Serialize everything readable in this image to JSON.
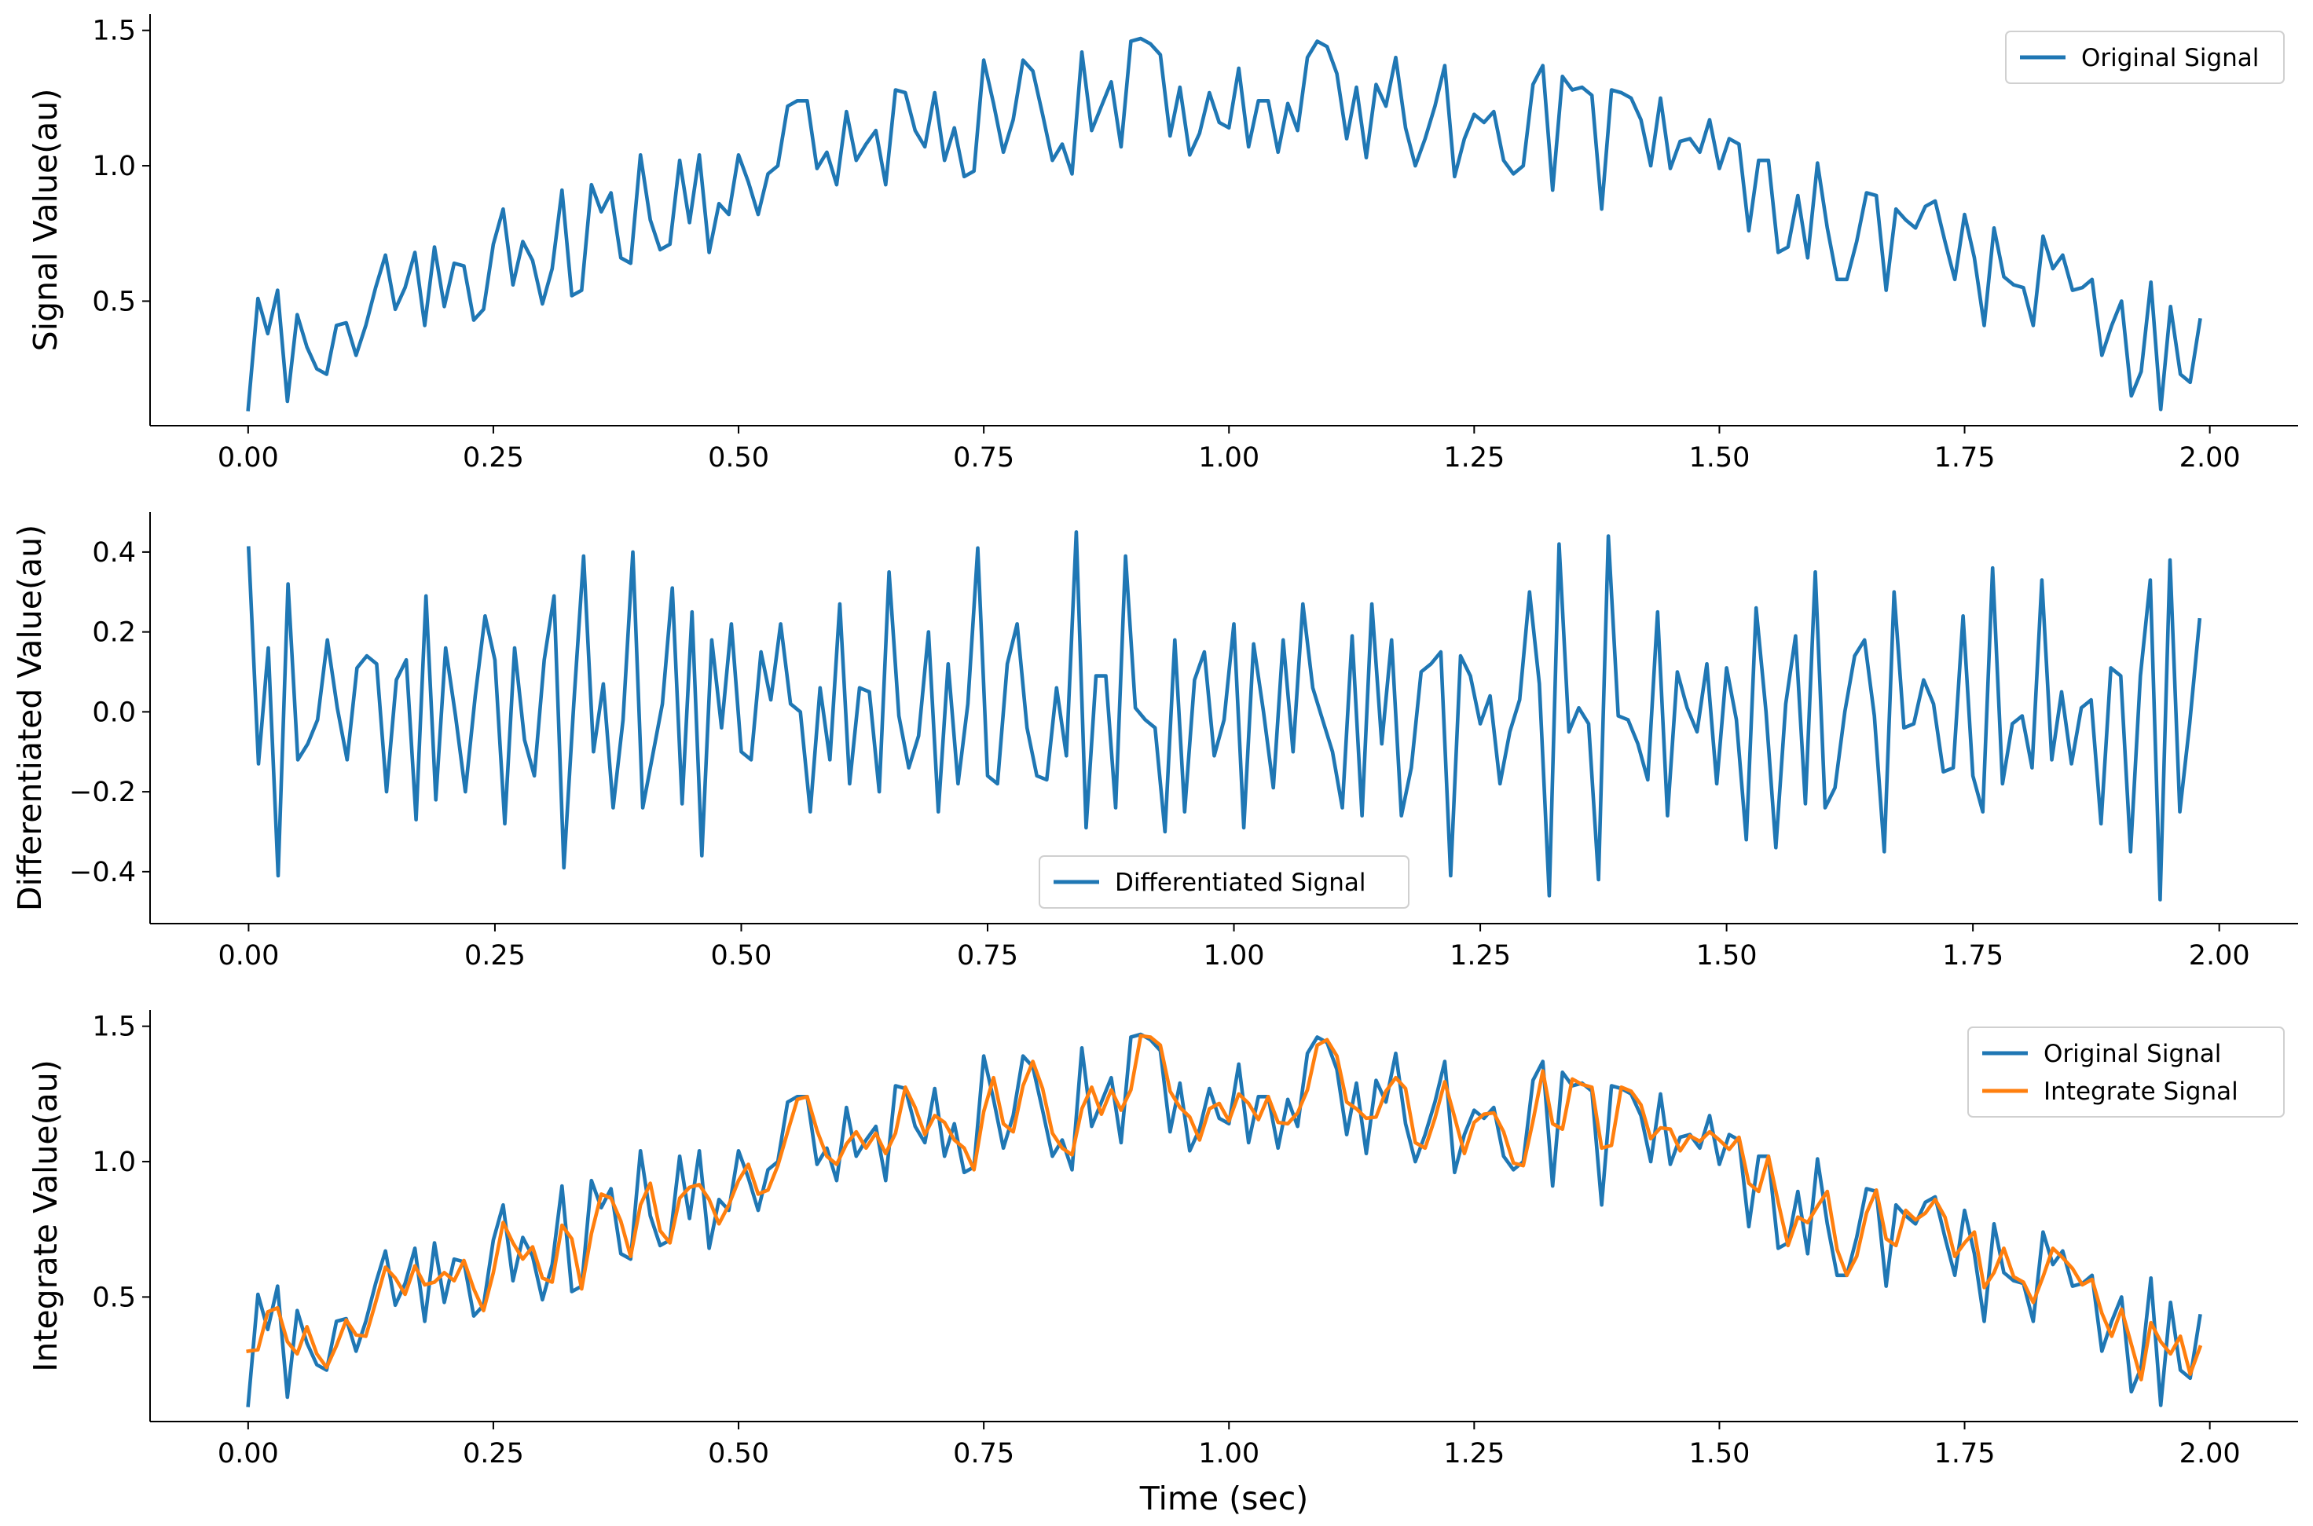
{
  "chart_data": [
    {
      "type": "line",
      "ylabel": "Signal Value(au)",
      "xlabel": "",
      "xlim": [
        -0.1,
        2.09
      ],
      "ylim": [
        0.04,
        1.56
      ],
      "xticks": [
        0.0,
        0.25,
        0.5,
        0.75,
        1.0,
        1.25,
        1.5,
        1.75,
        2.0
      ],
      "xtick_labels": [
        "0.00",
        "0.25",
        "0.50",
        "0.75",
        "1.00",
        "1.25",
        "1.50",
        "1.75",
        "2.00"
      ],
      "yticks": [
        0.5,
        1.0,
        1.5
      ],
      "ytick_labels": [
        "0.5",
        "1.0",
        "1.5"
      ],
      "legend_position": "upper right",
      "series": [
        {
          "name": "Original Signal",
          "color": "#1f77b4",
          "x": [
            0.0,
            0.01,
            0.02,
            0.03,
            0.04,
            0.05,
            0.06,
            0.07,
            0.08,
            0.09,
            0.1,
            0.11,
            0.12,
            0.13,
            0.14,
            0.15,
            0.16,
            0.17,
            0.18,
            0.19,
            0.2,
            0.21,
            0.22,
            0.23,
            0.24,
            0.25,
            0.26,
            0.27,
            0.28,
            0.29,
            0.3,
            0.31,
            0.32,
            0.33,
            0.34,
            0.35,
            0.36,
            0.37,
            0.38,
            0.39,
            0.4,
            0.41,
            0.42,
            0.43,
            0.44,
            0.45,
            0.46,
            0.47,
            0.48,
            0.49,
            0.5,
            0.51,
            0.52,
            0.53,
            0.54,
            0.55,
            0.56,
            0.57,
            0.58,
            0.59,
            0.6,
            0.61,
            0.62,
            0.63,
            0.64,
            0.65,
            0.66,
            0.67,
            0.68,
            0.69,
            0.7,
            0.71,
            0.72,
            0.73,
            0.74,
            0.75,
            0.76,
            0.77,
            0.78,
            0.79,
            0.8,
            0.81,
            0.82,
            0.83,
            0.84,
            0.85,
            0.86,
            0.87,
            0.88,
            0.89,
            0.9,
            0.91,
            0.92,
            0.93,
            0.94,
            0.95,
            0.96,
            0.97,
            0.98,
            0.99,
            1.0,
            1.01,
            1.02,
            1.03,
            1.04,
            1.05,
            1.06,
            1.07,
            1.08,
            1.09,
            1.1,
            1.11,
            1.12,
            1.13,
            1.14,
            1.15,
            1.16,
            1.17,
            1.18,
            1.19,
            1.2,
            1.21,
            1.22,
            1.23,
            1.24,
            1.25,
            1.26,
            1.27,
            1.28,
            1.29,
            1.3,
            1.31,
            1.32,
            1.33,
            1.34,
            1.35,
            1.36,
            1.37,
            1.38,
            1.39,
            1.4,
            1.41,
            1.42,
            1.43,
            1.44,
            1.45,
            1.46,
            1.47,
            1.48,
            1.49,
            1.5,
            1.51,
            1.52,
            1.53,
            1.54,
            1.55,
            1.56,
            1.57,
            1.58,
            1.59,
            1.6,
            1.61,
            1.62,
            1.63,
            1.64,
            1.65,
            1.66,
            1.67,
            1.68,
            1.69,
            1.7,
            1.71,
            1.72,
            1.73,
            1.74,
            1.75,
            1.76,
            1.77,
            1.78,
            1.79,
            1.8,
            1.81,
            1.82,
            1.83,
            1.84,
            1.85,
            1.86,
            1.87,
            1.88,
            1.89,
            1.9,
            1.91,
            1.92,
            1.93,
            1.94,
            1.95,
            1.96,
            1.97,
            1.98,
            1.99
          ],
          "y": [
            0.1,
            0.51,
            0.38,
            0.54,
            0.13,
            0.45,
            0.33,
            0.25,
            0.23,
            0.41,
            0.42,
            0.3,
            0.41,
            0.55,
            0.67,
            0.47,
            0.55,
            0.68,
            0.41,
            0.7,
            0.48,
            0.64,
            0.63,
            0.43,
            0.47,
            0.71,
            0.84,
            0.56,
            0.72,
            0.65,
            0.49,
            0.62,
            0.91,
            0.52,
            0.54,
            0.93,
            0.83,
            0.9,
            0.66,
            0.64,
            1.04,
            0.8,
            0.69,
            0.71,
            1.02,
            0.79,
            1.04,
            0.68,
            0.86,
            0.82,
            1.04,
            0.94,
            0.82,
            0.97,
            1.0,
            1.22,
            1.24,
            1.24,
            0.99,
            1.05,
            0.93,
            1.2,
            1.02,
            1.08,
            1.13,
            0.93,
            1.28,
            1.27,
            1.13,
            1.07,
            1.27,
            1.02,
            1.14,
            0.96,
            0.98,
            1.39,
            1.23,
            1.05,
            1.17,
            1.39,
            1.35,
            1.19,
            1.02,
            1.08,
            0.97,
            1.42,
            1.13,
            1.22,
            1.31,
            1.07,
            1.46,
            1.47,
            1.45,
            1.41,
            1.11,
            1.29,
            1.04,
            1.12,
            1.27,
            1.16,
            1.14,
            1.36,
            1.07,
            1.24,
            1.24,
            1.05,
            1.23,
            1.13,
            1.4,
            1.46,
            1.44,
            1.34,
            1.1,
            1.29,
            1.03,
            1.3,
            1.22,
            1.4,
            1.14,
            1.0,
            1.1,
            1.22,
            1.37,
            0.96,
            1.1,
            1.19,
            1.16,
            1.2,
            1.02,
            0.97,
            1.0,
            1.3,
            1.37,
            0.91,
            1.33,
            1.28,
            1.29,
            1.26,
            0.84,
            1.28,
            1.27,
            1.25,
            1.17,
            1.0,
            1.25,
            0.99,
            1.09,
            1.1,
            1.05,
            1.17,
            0.99,
            1.1,
            1.08,
            0.76,
            1.02,
            1.02,
            0.68,
            0.7,
            0.89,
            0.66,
            1.01,
            0.77,
            0.58,
            0.58,
            0.72,
            0.9,
            0.89,
            0.54,
            0.84,
            0.8,
            0.77,
            0.85,
            0.87,
            0.72,
            0.58,
            0.82,
            0.66,
            0.41,
            0.77,
            0.59,
            0.56,
            0.55,
            0.41,
            0.74,
            0.62,
            0.67,
            0.54,
            0.55,
            0.58,
            0.3,
            0.41,
            0.5,
            0.15,
            0.24,
            0.57,
            0.1,
            0.48,
            0.23,
            0.2,
            0.43
          ]
        }
      ]
    },
    {
      "type": "line",
      "ylabel": "Differentiated Value(au)",
      "xlabel": "",
      "xlim": [
        -0.1,
        2.08
      ],
      "ylim": [
        -0.53,
        0.5
      ],
      "xticks": [
        0.0,
        0.25,
        0.5,
        0.75,
        1.0,
        1.25,
        1.5,
        1.75,
        2.0
      ],
      "xtick_labels": [
        "0.00",
        "0.25",
        "0.50",
        "0.75",
        "1.00",
        "1.25",
        "1.50",
        "1.75",
        "2.00"
      ],
      "yticks": [
        -0.4,
        -0.2,
        0.0,
        0.2,
        0.4
      ],
      "ytick_labels": [
        "−0.4",
        "−0.2",
        "0.0",
        "0.2",
        "0.4"
      ],
      "legend_position": "lower center",
      "series": [
        {
          "name": "Differentiated Signal",
          "color": "#1f77b4",
          "note_x": "x = 0.00 to 1.98 in steps of 0.01 (first differences of the original signal)"
        }
      ]
    },
    {
      "type": "line",
      "ylabel": "Integrate Value(au)",
      "xlabel": "Time (sec)",
      "xlim": [
        -0.1,
        2.09
      ],
      "ylim": [
        0.04,
        1.56
      ],
      "xticks": [
        0.0,
        0.25,
        0.5,
        0.75,
        1.0,
        1.25,
        1.5,
        1.75,
        2.0
      ],
      "xtick_labels": [
        "0.00",
        "0.25",
        "0.50",
        "0.75",
        "1.00",
        "1.25",
        "1.50",
        "1.75",
        "2.00"
      ],
      "yticks": [
        0.5,
        1.0,
        1.5
      ],
      "ytick_labels": [
        "0.5",
        "1.0",
        "1.5"
      ],
      "legend_position": "upper right",
      "series": [
        {
          "name": "Original Signal",
          "color": "#1f77b4"
        },
        {
          "name": "Integrate Signal",
          "color": "#ff7f0e",
          "note_y": "two-point running average of the original signal"
        }
      ]
    }
  ]
}
